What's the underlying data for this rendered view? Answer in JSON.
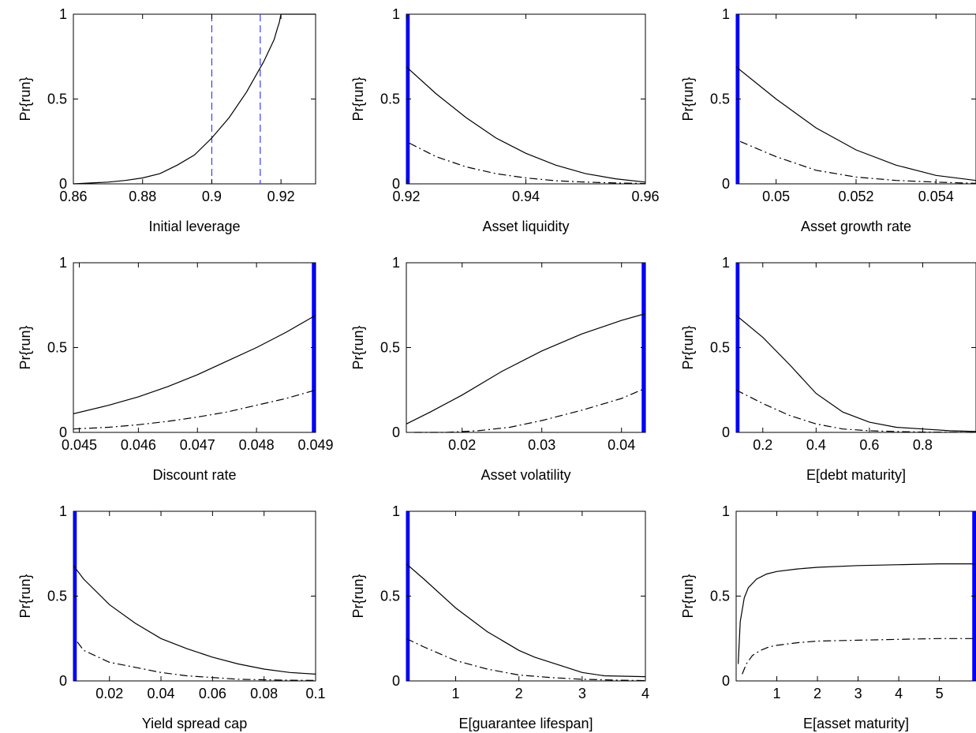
{
  "figure": {
    "ylabel": "Pr{run}"
  },
  "chart_data": [
    {
      "type": "line",
      "xlabel": "Initial leverage",
      "ylabel": "Pr{run}",
      "xlim": [
        0.86,
        0.93
      ],
      "ylim": [
        0,
        1
      ],
      "xticks": [
        "0.86",
        "0.88",
        "0.9",
        "0.92"
      ],
      "xtick_values": [
        0.86,
        0.88,
        0.9,
        0.92
      ],
      "yticks": [
        "0",
        "0.5",
        "1"
      ],
      "ytick_values": [
        0,
        0.5,
        1
      ],
      "highlight": {
        "kind": "dashed",
        "color": "#3a3aff",
        "x": [
          0.9,
          0.914
        ]
      },
      "series": [
        {
          "style": "solid",
          "x": [
            0.86,
            0.87,
            0.875,
            0.88,
            0.885,
            0.89,
            0.895,
            0.9,
            0.905,
            0.91,
            0.915,
            0.918,
            0.919,
            0.9195,
            0.92,
            0.93
          ],
          "y": [
            0.0,
            0.01,
            0.02,
            0.035,
            0.06,
            0.11,
            0.17,
            0.27,
            0.39,
            0.54,
            0.72,
            0.85,
            0.92,
            0.95,
            1.0,
            1.0
          ]
        }
      ]
    },
    {
      "type": "line",
      "xlabel": "Asset liquidity",
      "ylabel": "Pr{run}",
      "xlim": [
        0.92,
        0.96
      ],
      "ylim": [
        0,
        1
      ],
      "xticks": [
        "0.92",
        "0.94",
        "0.96"
      ],
      "xtick_values": [
        0.92,
        0.94,
        0.96
      ],
      "yticks": [
        "0",
        "0.5",
        "1"
      ],
      "ytick_values": [
        0,
        0.5,
        1
      ],
      "highlight": {
        "kind": "bar",
        "color": "#0000ff",
        "x": [
          0.92
        ]
      },
      "series": [
        {
          "style": "solid",
          "x": [
            0.92,
            0.925,
            0.93,
            0.935,
            0.94,
            0.945,
            0.95,
            0.955,
            0.96
          ],
          "y": [
            0.69,
            0.53,
            0.39,
            0.27,
            0.18,
            0.11,
            0.06,
            0.03,
            0.01
          ]
        },
        {
          "style": "dashdot",
          "x": [
            0.9205,
            0.925,
            0.93,
            0.935,
            0.94,
            0.945,
            0.95,
            0.955,
            0.96
          ],
          "y": [
            0.24,
            0.16,
            0.1,
            0.06,
            0.035,
            0.018,
            0.01,
            0.005,
            0.002
          ]
        }
      ]
    },
    {
      "type": "line",
      "xlabel": "Asset growth rate",
      "ylabel": "Pr{run}",
      "xlim": [
        0.049,
        0.055
      ],
      "ylim": [
        0,
        1
      ],
      "xticks": [
        "0.05",
        "0.052",
        "0.054"
      ],
      "xtick_values": [
        0.05,
        0.052,
        0.054
      ],
      "yticks": [
        "0",
        "0.5",
        "1"
      ],
      "ytick_values": [
        0,
        0.5,
        1
      ],
      "highlight": {
        "kind": "bar",
        "color": "#0000ff",
        "x": [
          0.049
        ]
      },
      "series": [
        {
          "style": "solid",
          "x": [
            0.049,
            0.05,
            0.051,
            0.052,
            0.053,
            0.054,
            0.055
          ],
          "y": [
            0.69,
            0.5,
            0.33,
            0.2,
            0.11,
            0.05,
            0.02
          ]
        },
        {
          "style": "dashdot",
          "x": [
            0.0491,
            0.05,
            0.051,
            0.052,
            0.053,
            0.054,
            0.055
          ],
          "y": [
            0.25,
            0.16,
            0.08,
            0.04,
            0.02,
            0.01,
            0.003
          ]
        }
      ]
    },
    {
      "type": "line",
      "xlabel": "Discount rate",
      "ylabel": "Pr{run}",
      "xlim": [
        0.0449,
        0.049
      ],
      "ylim": [
        0,
        1
      ],
      "xticks": [
        "0.045",
        "0.046",
        "0.047",
        "0.048",
        "0.049"
      ],
      "xtick_values": [
        0.045,
        0.046,
        0.047,
        0.048,
        0.049
      ],
      "yticks": [
        "0",
        "0.5",
        "1"
      ],
      "ytick_values": [
        0,
        0.5,
        1
      ],
      "highlight": {
        "kind": "bar",
        "color": "#0000ff",
        "x": [
          0.049
        ]
      },
      "series": [
        {
          "style": "solid",
          "x": [
            0.0449,
            0.0455,
            0.046,
            0.0465,
            0.047,
            0.0475,
            0.048,
            0.0485,
            0.049
          ],
          "y": [
            0.11,
            0.16,
            0.21,
            0.27,
            0.34,
            0.42,
            0.5,
            0.59,
            0.69
          ]
        },
        {
          "style": "dashdot",
          "x": [
            0.0449,
            0.0455,
            0.046,
            0.0465,
            0.047,
            0.0475,
            0.048,
            0.0485,
            0.049
          ],
          "y": [
            0.02,
            0.03,
            0.045,
            0.065,
            0.09,
            0.12,
            0.16,
            0.2,
            0.25
          ]
        }
      ]
    },
    {
      "type": "line",
      "xlabel": "Asset volatility",
      "ylabel": "Pr{run}",
      "xlim": [
        0.013,
        0.043
      ],
      "ylim": [
        0,
        1
      ],
      "xticks": [
        "0.02",
        "0.03",
        "0.04"
      ],
      "xtick_values": [
        0.02,
        0.03,
        0.04
      ],
      "yticks": [
        "0",
        "0.5",
        "1"
      ],
      "ytick_values": [
        0,
        0.5,
        1
      ],
      "highlight": {
        "kind": "bar",
        "color": "#0000ff",
        "x": [
          0.043
        ]
      },
      "series": [
        {
          "style": "solid",
          "x": [
            0.013,
            0.016,
            0.02,
            0.025,
            0.03,
            0.035,
            0.04,
            0.043
          ],
          "y": [
            0.05,
            0.12,
            0.22,
            0.36,
            0.48,
            0.58,
            0.66,
            0.7
          ]
        },
        {
          "style": "dashdot",
          "x": [
            0.014,
            0.018,
            0.022,
            0.026,
            0.03,
            0.035,
            0.04,
            0.043
          ],
          "y": [
            0.0,
            0.0,
            0.01,
            0.03,
            0.07,
            0.13,
            0.2,
            0.26
          ]
        }
      ]
    },
    {
      "type": "line",
      "xlabel": "E[debt maturity]",
      "ylabel": "Pr{run}",
      "xlim": [
        0.1,
        1.0
      ],
      "ylim": [
        0,
        1
      ],
      "xticks": [
        "0.2",
        "0.4",
        "0.6",
        "0.8"
      ],
      "xtick_values": [
        0.2,
        0.4,
        0.6,
        0.8
      ],
      "yticks": [
        "0",
        "0.5",
        "1"
      ],
      "ytick_values": [
        0,
        0.5,
        1
      ],
      "highlight": {
        "kind": "bar",
        "color": "#0000ff",
        "x": [
          0.1
        ]
      },
      "series": [
        {
          "style": "solid",
          "x": [
            0.1,
            0.2,
            0.3,
            0.4,
            0.5,
            0.6,
            0.7,
            0.8,
            0.9,
            1.0
          ],
          "y": [
            0.69,
            0.56,
            0.4,
            0.23,
            0.12,
            0.06,
            0.03,
            0.02,
            0.01,
            0.005
          ]
        },
        {
          "style": "dashdot",
          "x": [
            0.1,
            0.2,
            0.3,
            0.4,
            0.5,
            0.6,
            0.7,
            0.8,
            0.9,
            1.0
          ],
          "y": [
            0.25,
            0.17,
            0.1,
            0.05,
            0.02,
            0.01,
            0.005,
            0.002,
            0.001,
            0.0
          ]
        }
      ]
    },
    {
      "type": "line",
      "xlabel": "Yield spread cap",
      "ylabel": "Pr{run}",
      "xlim": [
        0.006,
        0.1
      ],
      "ylim": [
        0,
        1
      ],
      "xticks": [
        "0.02",
        "0.04",
        "0.06",
        "0.08",
        "0.1"
      ],
      "xtick_values": [
        0.02,
        0.04,
        0.06,
        0.08,
        0.1
      ],
      "yticks": [
        "0",
        "0.5",
        "1"
      ],
      "ytick_values": [
        0,
        0.5,
        1
      ],
      "highlight": {
        "kind": "bar",
        "color": "#0000ff",
        "x": [
          0.006
        ]
      },
      "series": [
        {
          "style": "solid",
          "x": [
            0.006,
            0.01,
            0.02,
            0.03,
            0.04,
            0.05,
            0.06,
            0.07,
            0.08,
            0.09,
            0.1
          ],
          "y": [
            0.68,
            0.6,
            0.45,
            0.34,
            0.25,
            0.19,
            0.14,
            0.1,
            0.07,
            0.05,
            0.04
          ]
        },
        {
          "style": "dashdot",
          "x": [
            0.0075,
            0.01,
            0.02,
            0.03,
            0.04,
            0.05,
            0.06,
            0.07,
            0.08,
            0.09,
            0.1
          ],
          "y": [
            0.23,
            0.18,
            0.11,
            0.08,
            0.05,
            0.03,
            0.02,
            0.01,
            0.007,
            0.004,
            0.003
          ]
        }
      ]
    },
    {
      "type": "line",
      "xlabel": "E[guarantee lifespan]",
      "ylabel": "Pr{run}",
      "xlim": [
        0.22,
        4.0
      ],
      "ylim": [
        0,
        1
      ],
      "xticks": [
        "1",
        "2",
        "3",
        "4"
      ],
      "xtick_values": [
        1,
        2,
        3,
        4
      ],
      "yticks": [
        "0",
        "0.5",
        "1"
      ],
      "ytick_values": [
        0,
        0.5,
        1
      ],
      "highlight": {
        "kind": "bar",
        "color": "#0000ff",
        "x": [
          0.22
        ]
      },
      "series": [
        {
          "style": "solid",
          "x": [
            0.22,
            0.5,
            1.0,
            1.5,
            2.0,
            2.25,
            2.75,
            3.0,
            3.35,
            4.0
          ],
          "y": [
            0.69,
            0.6,
            0.43,
            0.29,
            0.18,
            0.14,
            0.08,
            0.05,
            0.03,
            0.025
          ]
        },
        {
          "style": "dashdot",
          "x": [
            0.22,
            0.5,
            1.0,
            1.5,
            2.0,
            2.5,
            3.0,
            3.5,
            4.0
          ],
          "y": [
            0.25,
            0.2,
            0.12,
            0.07,
            0.035,
            0.02,
            0.01,
            0.005,
            0.002
          ]
        }
      ]
    },
    {
      "type": "line",
      "xlabel": "E[asset maturity]",
      "ylabel": "Pr{run}",
      "xlim": [
        0,
        5.9
      ],
      "ylim": [
        0,
        1
      ],
      "xticks": [
        "1",
        "2",
        "3",
        "4",
        "5"
      ],
      "xtick_values": [
        1,
        2,
        3,
        4,
        5
      ],
      "yticks": [
        "0",
        "0.5",
        "1"
      ],
      "ytick_values": [
        0,
        0.5,
        1
      ],
      "highlight": {
        "kind": "bar",
        "color": "#0000ff",
        "x": [
          5.9
        ]
      },
      "series": [
        {
          "style": "solid",
          "x": [
            0.05,
            0.1,
            0.2,
            0.3,
            0.5,
            0.75,
            1.0,
            1.5,
            2.0,
            3.0,
            4.0,
            5.0,
            5.9
          ],
          "y": [
            0.1,
            0.35,
            0.49,
            0.55,
            0.6,
            0.63,
            0.645,
            0.66,
            0.67,
            0.68,
            0.685,
            0.69,
            0.69
          ]
        },
        {
          "style": "dashdot",
          "x": [
            0.15,
            0.25,
            0.4,
            0.6,
            0.8,
            1.0,
            1.5,
            2.0,
            3.0,
            4.0,
            5.0,
            5.9
          ],
          "y": [
            0.04,
            0.1,
            0.15,
            0.18,
            0.2,
            0.21,
            0.225,
            0.235,
            0.24,
            0.245,
            0.25,
            0.25
          ]
        }
      ]
    }
  ]
}
